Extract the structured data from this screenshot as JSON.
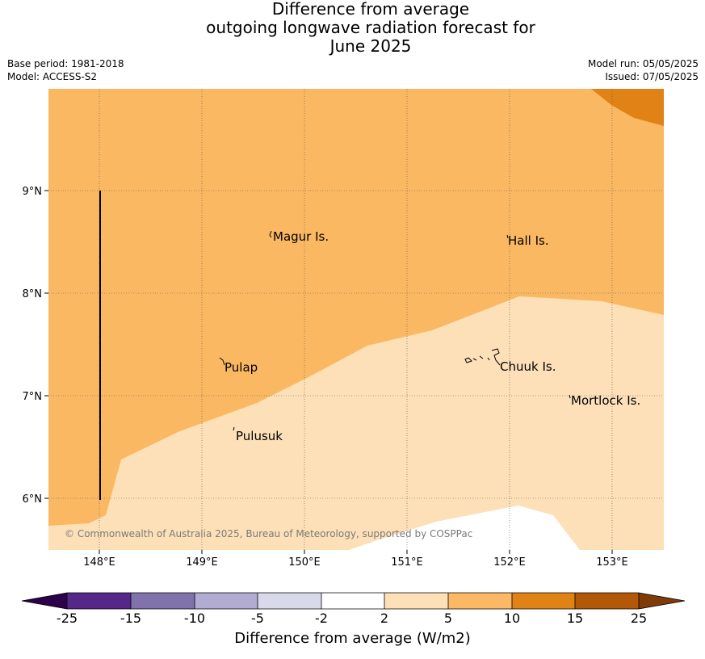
{
  "title": {
    "line1": "Difference from average",
    "line2": "outgoing longwave radiation forecast for",
    "line3": "June 2025"
  },
  "meta": {
    "base_period": "Base period: 1981-2018",
    "model": "Model: ACCESS-S2",
    "model_run": "Model run: 05/05/2025",
    "issued": "Issued: 07/05/2025"
  },
  "map": {
    "lon_ticks": [
      "148°E",
      "149°E",
      "150°E",
      "151°E",
      "152°E",
      "153°E"
    ],
    "lat_ticks": [
      "9°N",
      "8°N",
      "7°N",
      "6°N"
    ],
    "places": [
      "Magur Is.",
      "Hall Is.",
      "Pulap",
      "Chuuk Is.",
      "Mortlock Is.",
      "Pulusuk"
    ],
    "copyright": "© Commonwealth of Australia 2025, Bureau of Meteorology, supported by COSPPac",
    "colors": {
      "5_to_10": "#fbb862",
      "2_to_5": "#fde0b7",
      "-2_to_2": "#ffffff",
      "10_to_15": "#e08216"
    }
  },
  "colorbar": {
    "title": "Difference from average (W/m2)",
    "ticks": [
      "-25",
      "-15",
      "-10",
      "-5",
      "-2",
      "2",
      "5",
      "10",
      "15",
      "25"
    ],
    "colors": [
      "#2d004b",
      "#542788",
      "#8073ac",
      "#b2abd2",
      "#d8daeb",
      "#ffffff",
      "#fee0b6",
      "#fdb863",
      "#e08214",
      "#b35806",
      "#7f3b08"
    ]
  }
}
